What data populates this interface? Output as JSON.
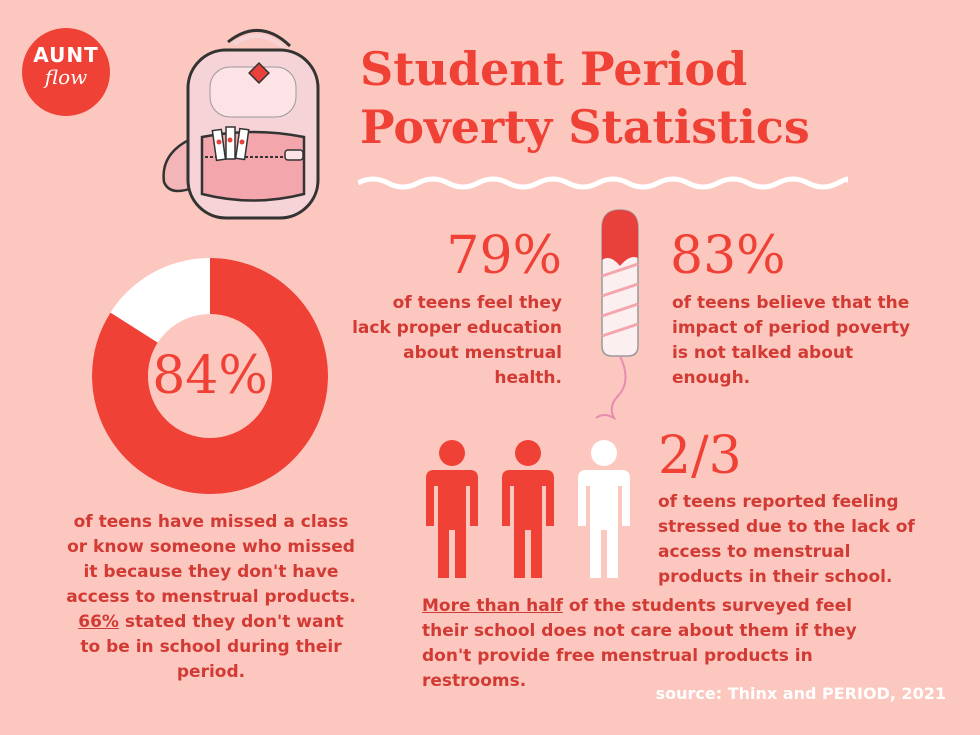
{
  "logo": {
    "line1": "AUNT",
    "line2": "flow"
  },
  "title": {
    "line1": "Student Period",
    "line2": "Poverty Statistics"
  },
  "stat_84": {
    "value": "84%",
    "fraction": 0.84,
    "text_part1": "of teens have missed a class or know someone who missed it because they don't have access to menstrual products.",
    "highlight": "66%",
    "text_part2": "stated they don't want to be in school during their period."
  },
  "stat_79": {
    "value": "79%",
    "text": "of teens feel they lack proper education about menstrual health."
  },
  "stat_83": {
    "value": "83%",
    "text": "of teens believe that the impact of period poverty is not talked about enough."
  },
  "stat_2_3": {
    "value": "2/3",
    "text": "of teens reported feeling stressed due to the lack of access to menstrual products in their school."
  },
  "more_than_half": {
    "highlight": "More than half",
    "text": "of the students surveyed feel their school does not care about them if they don't provide free menstrual products in restrooms."
  },
  "source": "source: Thinx and PERIOD, 2021",
  "colors": {
    "background": "#fcc7bf",
    "accent": "#ef4135",
    "text": "#d23a34",
    "white": "#ffffff"
  }
}
